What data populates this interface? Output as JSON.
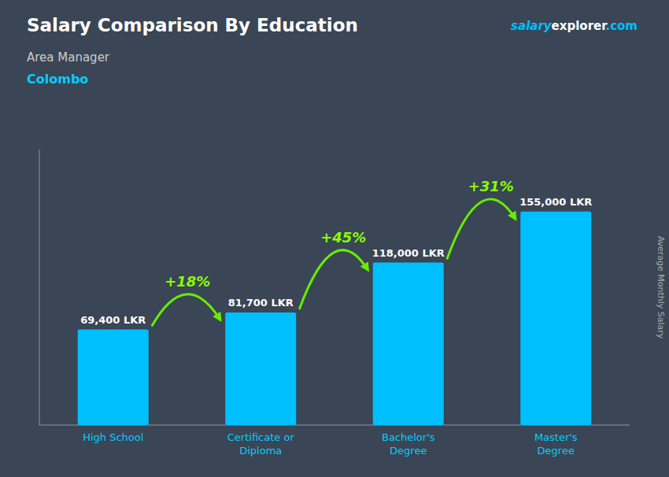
{
  "chart_data": {
    "type": "bar",
    "title": "Salary Comparison By Education",
    "subtitle": [
      "Area Manager",
      "Colombo"
    ],
    "ylabel": "Average Monthly Salary",
    "categories": [
      "High School",
      "Certificate or\nDiploma",
      "Bachelor's\nDegree",
      "Master's\nDegree"
    ],
    "values": [
      69400,
      81700,
      118000,
      155000
    ],
    "value_labels": [
      "69,400 LKR",
      "81,700 LKR",
      "118,000 LKR",
      "155,000 LKR"
    ],
    "data_labels": true,
    "annotations": [
      "+18%",
      "+45%",
      "+31%",
      "salary",
      "explorer",
      ".com"
    ],
    "color": "#00bfff",
    "ylim": [
      0,
      200000
    ],
    "tick_labels": "x",
    "grid": false
  }
}
